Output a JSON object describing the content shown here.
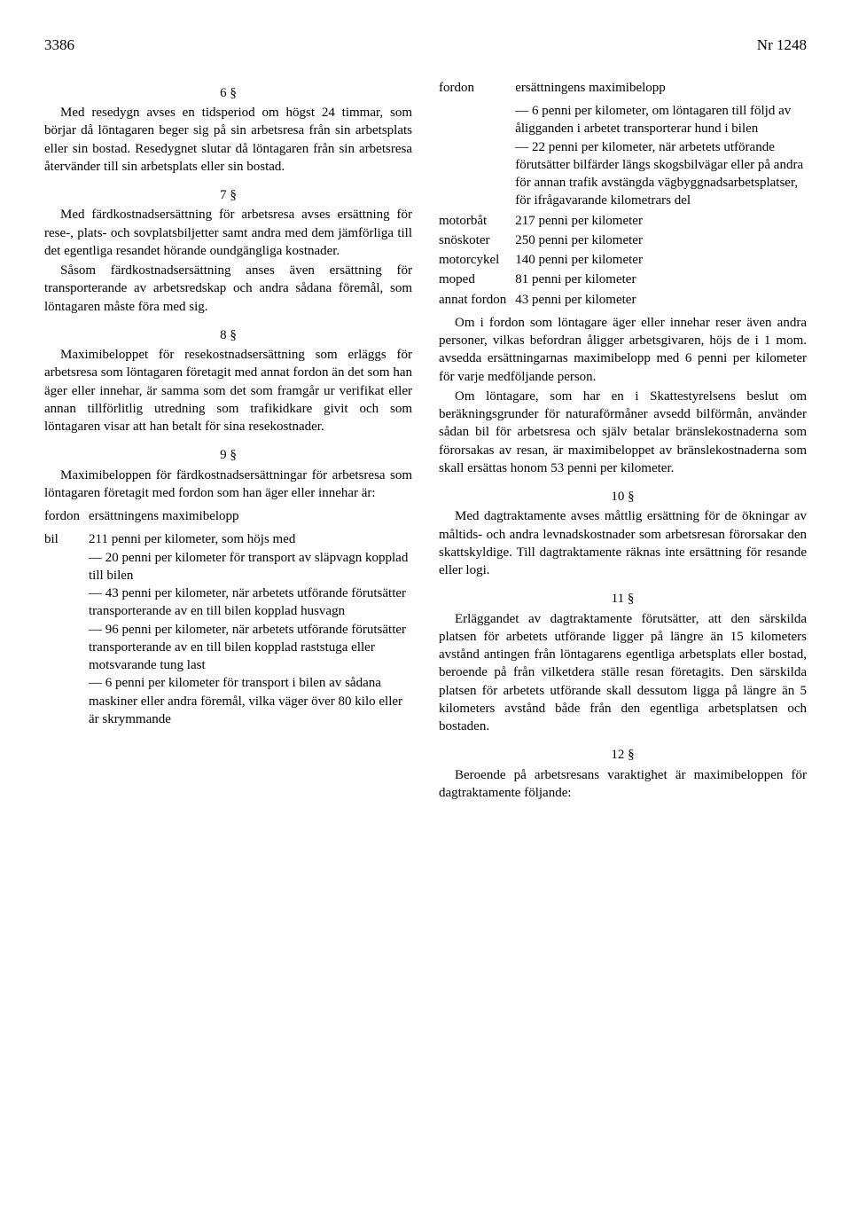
{
  "header": {
    "page_num": "3386",
    "doc_num": "Nr 1248"
  },
  "left": {
    "s6_num": "6 §",
    "s6_p1": "Med resedygn avses en tidsperiod om högst 24 timmar, som börjar då löntagaren beger sig på sin arbetsresa från sin arbetsplats eller sin bostad. Resedygnet slutar då löntagaren från sin arbetsresa återvänder till sin arbetsplats eller sin bostad.",
    "s7_num": "7 §",
    "s7_p1": "Med färdkostnadsersättning för arbetsresa avses ersättning för rese-, plats- och sovplatsbiljetter samt andra med dem jämförliga till det egentliga resandet hörande oundgängliga kostnader.",
    "s7_p2": "Såsom färdkostnadsersättning anses även ersättning för transporterande av arbetsredskap och andra sådana föremål, som löntagaren måste föra med sig.",
    "s8_num": "8 §",
    "s8_p1": "Maximibeloppet för resekostnadsersättning som erläggs för arbetsresa som löntagaren företagit med annat fordon än det som han äger eller innehar, är samma som det som framgår ur verifikat eller annan tillförlitlig utredning som trafikidkare givit och som löntagaren visar att han betalt för sina resekostnader.",
    "s9_num": "9 §",
    "s9_p1": "Maximibeloppen för färdkostnadsersättningar för arbetsresa som löntagaren företagit med fordon som han äger eller innehar är:",
    "tbl_head_l": "fordon",
    "tbl_head_r": "ersättningens maximibelopp",
    "bil_label": "bil",
    "bil_main": "211 penni per kilometer, som höjs med",
    "bil_b1": "— 20 penni per kilometer för transport av släpvagn kopplad till bilen",
    "bil_b2": "— 43 penni per kilometer, när arbetets utförande förutsätter transporterande av en till bilen kopplad husvagn",
    "bil_b3": "— 96 penni per kilometer, när arbetets utförande förutsätter transporterande av en till bilen kopplad raststuga eller motsvarande tung last",
    "bil_b4": "— 6 penni per kilometer för transport i bilen av sådana maskiner eller andra föremål, vilka väger över 80 kilo eller är skrymmande"
  },
  "right": {
    "tbl_head_l": "fordon",
    "tbl_head_r": "ersättningens maximibelopp",
    "cont_b1": "— 6 penni per kilometer, om löntagaren till följd av åligganden i arbetet transporterar hund i bilen",
    "cont_b2": "— 22 penni per kilometer, när arbetets utförande förutsätter bilfärder längs skogsbilvägar eller på andra för annan trafik avstängda vägbyggnadsarbetsplatser, för ifrågavarande kilometrars del",
    "rows": [
      {
        "l": "motorbåt",
        "r": "217 penni per kilometer"
      },
      {
        "l": "snöskoter",
        "r": "250 penni per kilometer"
      },
      {
        "l": "motorcykel",
        "r": "140 penni per kilometer"
      },
      {
        "l": "moped",
        "r": "81 penni per kilometer"
      },
      {
        "l": "annat fordon",
        "r": "43 penni per kilometer"
      }
    ],
    "post_p1": "Om i fordon som löntagare äger eller innehar reser även andra personer, vilkas befordran åligger arbetsgivaren, höjs de i 1 mom. avsedda ersättningarnas maximibelopp med 6 penni per kilometer för varje medföljande person.",
    "post_p2": "Om löntagare, som har en i Skattestyrelsens beslut om beräkningsgrunder för naturaförmåner avsedd bilförmån, använder sådan bil för arbetsresa och själv betalar bränslekostnaderna som förorsakas av resan, är maximibeloppet av bränslekostnaderna som skall ersättas honom 53 penni per kilometer.",
    "s10_num": "10 §",
    "s10_p1": "Med dagtraktamente avses måttlig ersättning för de ökningar av måltids- och andra levnadskostnader som arbetsresan förorsakar den skattskyldige. Till dagtraktamente räknas inte ersättning för resande eller logi.",
    "s11_num": "11 §",
    "s11_p1": "Erläggandet av dagtraktamente förutsätter, att den särskilda platsen för arbetets utförande ligger på längre än 15 kilometers avstånd antingen från löntagarens egentliga arbetsplats eller bostad, beroende på från vilketdera ställe resan företagits. Den särskilda platsen för arbetets utförande skall dessutom ligga på längre än 5 kilometers avstånd både från den egentliga arbetsplatsen och bostaden.",
    "s12_num": "12 §",
    "s12_p1": "Beroende på arbetsresans varaktighet är maximibeloppen för dagtraktamente följande:"
  }
}
